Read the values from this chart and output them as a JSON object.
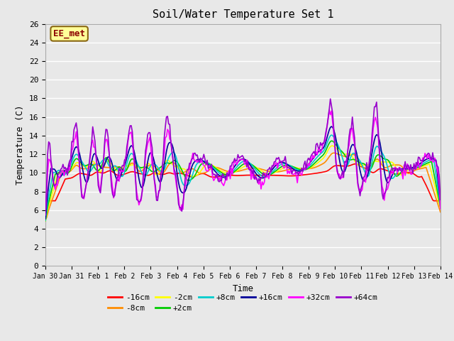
{
  "title": "Soil/Water Temperature Set 1",
  "xlabel": "Time",
  "ylabel": "Temperature (C)",
  "ylim": [
    0,
    26
  ],
  "annotation_text": "EE_met",
  "annotation_color": "#8B0000",
  "annotation_bg": "#FFFF99",
  "bg_color": "#E8E8E8",
  "grid_color": "#FFFFFF",
  "xtick_labels": [
    "Jan 30",
    "Jan 31",
    "Feb 1",
    "Feb 2",
    "Feb 3",
    "Feb 4",
    "Feb 5",
    "Feb 6",
    "Feb 7",
    "Feb 8",
    "Feb 9",
    "Feb 10",
    "Feb 11",
    "Feb 12",
    "Feb 13",
    "Feb 14"
  ],
  "series": [
    {
      "label": "-16cm",
      "color": "#FF0000"
    },
    {
      "label": "-8cm",
      "color": "#FF8C00"
    },
    {
      "label": "-2cm",
      "color": "#FFFF00"
    },
    {
      "label": "+2cm",
      "color": "#00CC00"
    },
    {
      "label": "+8cm",
      "color": "#00CCCC"
    },
    {
      "label": "+16cm",
      "color": "#000099"
    },
    {
      "label": "+32cm",
      "color": "#FF00FF"
    },
    {
      "label": "+64cm",
      "color": "#9900CC"
    }
  ],
  "yticks": [
    0,
    2,
    4,
    6,
    8,
    10,
    12,
    14,
    16,
    18,
    20,
    22,
    24,
    26
  ],
  "font_family": "monospace"
}
